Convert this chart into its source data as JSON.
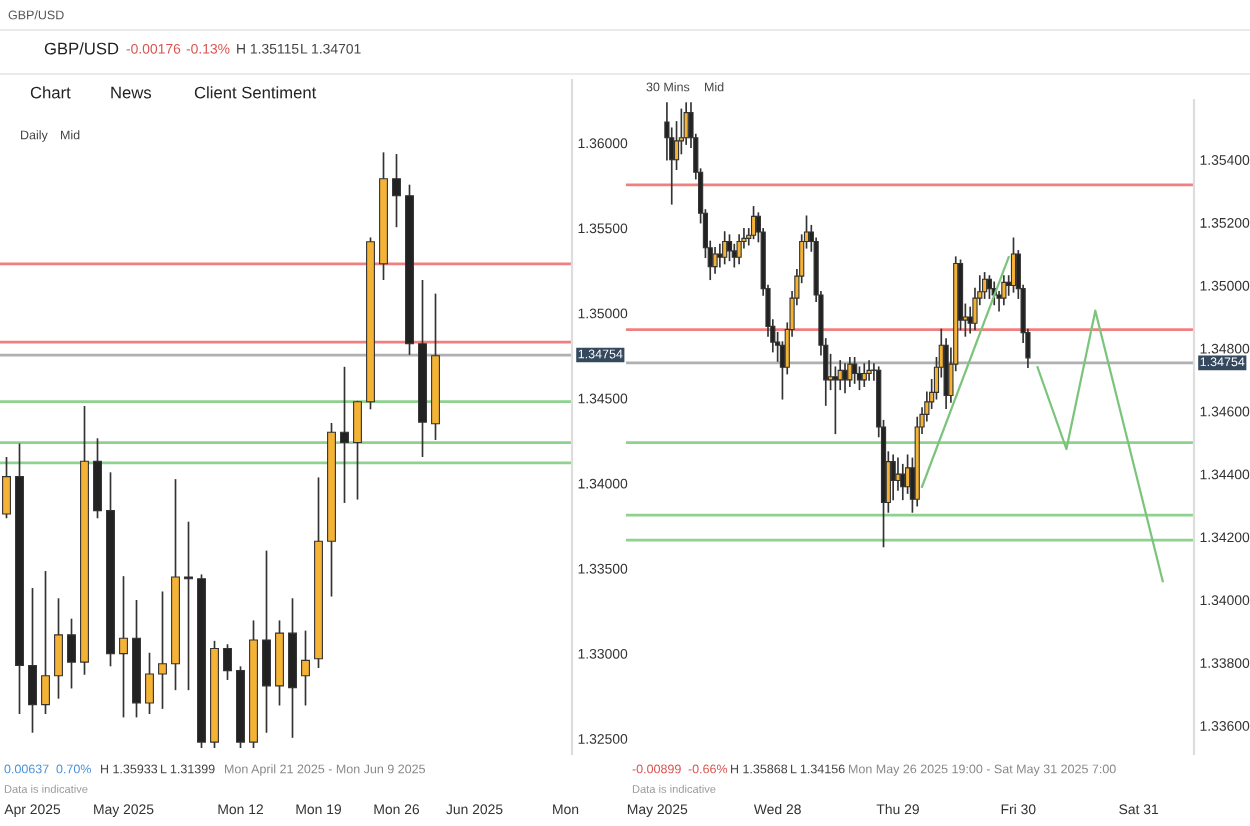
{
  "chart_data": [
    {
      "type": "candlestick",
      "annotations": [
        "GBP/USD",
        "GBP/USD",
        "-0.00176",
        "-0.13%",
        "H 1.35115",
        "L 1.34701",
        "Chart",
        "News",
        "Client Sentiment",
        "Daily",
        "Mid",
        "0.00637",
        "0.70%",
        "H 1.35933",
        "L 1.31399",
        "Mon April 21 2025 - Mon Jun 9 2025",
        "Data is indicative"
      ],
      "categories": [
        null,
        null,
        "Apr 2025",
        null,
        null,
        null,
        null,
        null,
        null,
        "May 2025",
        null,
        null,
        null,
        null,
        null,
        null,
        null,
        null,
        "Mon 12",
        null,
        null,
        null,
        null,
        null,
        "Mon 19",
        null,
        null,
        null,
        null,
        null,
        "Mon 26",
        null,
        null,
        null,
        null,
        null,
        "Jun 2025",
        null,
        null,
        null,
        null,
        null,
        null,
        "Mon"
      ],
      "ohlc": [
        [
          1.3382,
          1.3415,
          1.338,
          1.3404
        ],
        [
          1.3404,
          1.3423,
          1.3265,
          1.3293
        ],
        [
          1.3293,
          1.3338,
          1.3254,
          1.327
        ],
        [
          1.327,
          1.3348,
          1.3265,
          1.3287
        ],
        [
          1.3287,
          1.3332,
          1.3274,
          1.3311
        ],
        [
          1.3311,
          1.332,
          1.328,
          1.3295
        ],
        [
          1.3295,
          1.3445,
          1.3288,
          1.3413
        ],
        [
          1.3413,
          1.3426,
          1.338,
          1.3384
        ],
        [
          1.3384,
          1.3406,
          1.3293,
          1.33
        ],
        [
          1.33,
          1.3345,
          1.3263,
          1.3309
        ],
        [
          1.3309,
          1.3331,
          1.3263,
          1.3271
        ],
        [
          1.3271,
          1.33,
          1.3265,
          1.3288
        ],
        [
          1.3288,
          1.3336,
          1.3268,
          1.3294
        ],
        [
          1.3294,
          1.3402,
          1.3279,
          1.3345
        ],
        [
          1.3345,
          1.3377,
          1.3279,
          1.3344
        ],
        [
          1.3344,
          1.3346,
          1.3245,
          1.3248
        ],
        [
          1.3248,
          1.3307,
          1.3245,
          1.3303
        ],
        [
          1.3303,
          1.3305,
          1.3285,
          1.329
        ],
        [
          1.329,
          1.3292,
          1.3245,
          1.3248
        ],
        [
          1.3248,
          1.3319,
          1.3245,
          1.3308
        ],
        [
          1.3308,
          1.336,
          1.3254,
          1.3281
        ],
        [
          1.3281,
          1.3319,
          1.327,
          1.3312
        ],
        [
          1.3312,
          1.3332,
          1.3251,
          1.328
        ],
        [
          1.3287,
          1.3313,
          1.327,
          1.3296
        ],
        [
          1.3297,
          1.3403,
          1.3292,
          1.3366
        ],
        [
          1.3366,
          1.3435,
          1.3334,
          1.343
        ],
        [
          1.343,
          1.3468,
          1.3389,
          1.3424
        ],
        [
          1.3424,
          1.3448,
          1.3391,
          1.3448
        ],
        [
          1.3448,
          1.3544,
          1.3444,
          1.3542
        ],
        [
          1.3529,
          1.3594,
          1.352,
          1.3579
        ],
        [
          1.3579,
          1.3593,
          1.3551,
          1.3569
        ],
        [
          1.3569,
          1.3575,
          1.3476,
          1.3482
        ],
        [
          1.3482,
          1.3519,
          1.3416,
          1.3436
        ],
        [
          1.3435,
          1.3511,
          1.3426,
          1.3475
        ],
        null,
        null,
        null,
        null,
        null,
        null,
        null,
        null,
        null,
        null
      ],
      "ylim": [
        1.3241,
        1.3637
      ],
      "yticks": [
        {
          "value": 1.325,
          "label": "1.32500"
        },
        {
          "value": 1.33,
          "label": "1.33000"
        },
        {
          "value": 1.335,
          "label": "1.33500"
        },
        {
          "value": 1.34,
          "label": "1.34000"
        },
        {
          "value": 1.345,
          "label": "1.34500"
        },
        {
          "value": 1.35,
          "label": "1.35000"
        },
        {
          "value": 1.355,
          "label": "1.35500"
        },
        {
          "value": 1.36,
          "label": "1.36000"
        }
      ],
      "ref_lines": [
        {
          "axis": "y",
          "value": 1.3529,
          "color": "#f08080"
        },
        {
          "axis": "y",
          "value": 1.3483,
          "color": "#f08080"
        },
        {
          "axis": "y",
          "value": 1.34754,
          "label": "1.34754",
          "color": "#b0b0b0"
        },
        {
          "axis": "y",
          "value": 1.3448,
          "color": "#8fd18f"
        },
        {
          "axis": "y",
          "value": 1.3424,
          "color": "#8fd18f"
        },
        {
          "axis": "y",
          "value": 1.3412,
          "color": "#8fd18f"
        }
      ]
    },
    {
      "type": "candlestick",
      "annotations": [
        "30 Mins",
        "Mid",
        "-0.00899",
        "-0.66%",
        "H 1.35868",
        "L 1.34156",
        "Mon May 26 2025 19:00 - Sat May 31 2025 7:00",
        "Data is indicative"
      ],
      "categories": [
        null,
        null,
        null,
        null,
        null,
        null,
        "May 2025",
        null,
        null,
        null,
        null,
        null,
        null,
        null,
        null,
        null,
        null,
        null,
        null,
        null,
        null,
        null,
        null,
        null,
        null,
        null,
        null,
        null,
        null,
        null,
        null,
        "Wed 28",
        null,
        null,
        null,
        null,
        null,
        null,
        null,
        null,
        null,
        null,
        null,
        null,
        null,
        null,
        null,
        null,
        null,
        null,
        null,
        null,
        null,
        null,
        null,
        null,
        "Thu 29",
        null,
        null,
        null,
        null,
        null,
        null,
        null,
        null,
        null,
        null,
        null,
        null,
        null,
        null,
        null,
        null,
        null,
        null,
        null,
        null,
        null,
        null,
        null,
        null,
        "Fri 30",
        null,
        null,
        null,
        null,
        null,
        null,
        null,
        null,
        null,
        null,
        null,
        null,
        null,
        null,
        null,
        null,
        null,
        null,
        null,
        null,
        null,
        null,
        null,
        null,
        "Sat 31",
        null,
        null,
        null,
        null,
        null,
        null,
        null,
        null,
        null,
        null,
        null
      ],
      "ohlc": [
        null,
        null,
        null,
        null,
        null,
        null,
        null,
        null,
        [
          1.3552,
          1.3558,
          1.354,
          1.3547
        ],
        [
          1.3547,
          1.355,
          1.3526,
          1.354
        ],
        [
          1.354,
          1.3552,
          1.3537,
          1.3546
        ],
        [
          1.3546,
          1.3556,
          1.3542,
          1.3547
        ],
        [
          1.3547,
          1.3558,
          1.3545,
          1.3555
        ],
        [
          1.3555,
          1.3558,
          1.3544,
          1.3547
        ],
        [
          1.3547,
          1.3548,
          1.3534,
          1.3536
        ],
        [
          1.3536,
          1.3537,
          1.352,
          1.3523
        ],
        [
          1.3523,
          1.3524,
          1.3509,
          1.3512
        ],
        [
          1.3512,
          1.3514,
          1.3502,
          1.3506
        ],
        [
          1.3506,
          1.3512,
          1.3504,
          1.351
        ],
        [
          1.351,
          1.3513,
          1.3506,
          1.3509
        ],
        [
          1.3509,
          1.3517,
          1.3507,
          1.3514
        ],
        [
          1.3514,
          1.3516,
          1.3508,
          1.3511
        ],
        [
          1.3511,
          1.3513,
          1.3506,
          1.3509
        ],
        [
          1.3509,
          1.3516,
          1.3507,
          1.3514
        ],
        [
          1.3514,
          1.3518,
          1.3512,
          1.3515
        ],
        [
          1.3515,
          1.3518,
          1.3513,
          1.3516
        ],
        [
          1.3516,
          1.3525,
          1.3515,
          1.3522
        ],
        [
          1.3522,
          1.3523,
          1.3514,
          1.3517
        ],
        [
          1.3517,
          1.3518,
          1.3497,
          1.3499
        ],
        [
          1.3499,
          1.35,
          1.3484,
          1.3487
        ],
        [
          1.3487,
          1.3489,
          1.3479,
          1.3482
        ],
        [
          1.3482,
          1.3485,
          1.3476,
          1.3481
        ],
        [
          1.3481,
          1.3482,
          1.3464,
          1.3474
        ],
        [
          1.3474,
          1.3488,
          1.3472,
          1.3486
        ],
        [
          1.3486,
          1.3498,
          1.3484,
          1.3496
        ],
        [
          1.3496,
          1.3505,
          1.3494,
          1.3503
        ],
        [
          1.3503,
          1.3516,
          1.3501,
          1.3514
        ],
        [
          1.3514,
          1.3522,
          1.3512,
          1.3517
        ],
        [
          1.3517,
          1.3519,
          1.3511,
          1.3514
        ],
        [
          1.3514,
          1.3515,
          1.3495,
          1.3497
        ],
        [
          1.3497,
          1.3498,
          1.3478,
          1.3481
        ],
        [
          1.3481,
          1.3483,
          1.3462,
          1.347
        ],
        [
          1.347,
          1.3478,
          1.3467,
          1.3471
        ],
        [
          1.3471,
          1.3474,
          1.3453,
          1.347
        ],
        [
          1.347,
          1.3476,
          1.3467,
          1.3473
        ],
        [
          1.3473,
          1.3475,
          1.3466,
          1.347
        ],
        [
          1.347,
          1.3477,
          1.3468,
          1.3475
        ],
        [
          1.3475,
          1.3477,
          1.3469,
          1.3472
        ],
        [
          1.3472,
          1.3474,
          1.3467,
          1.347
        ],
        [
          1.347,
          1.3475,
          1.3468,
          1.3472
        ],
        [
          1.3472,
          1.3476,
          1.347,
          1.3473
        ],
        [
          1.3473,
          1.3475,
          1.347,
          1.3473
        ],
        [
          1.3473,
          1.3474,
          1.3452,
          1.3455
        ],
        [
          1.3455,
          1.3457,
          1.3417,
          1.3431
        ],
        [
          1.3431,
          1.3447,
          1.3428,
          1.3444
        ],
        [
          1.3444,
          1.3446,
          1.3432,
          1.3438
        ],
        [
          1.3438,
          1.3445,
          1.3435,
          1.344
        ],
        [
          1.344,
          1.3443,
          1.3432,
          1.3436
        ],
        [
          1.3436,
          1.3446,
          1.3434,
          1.3442
        ],
        [
          1.3442,
          1.3445,
          1.3428,
          1.3432
        ],
        [
          1.3432,
          1.3458,
          1.343,
          1.3455
        ],
        [
          1.3455,
          1.3461,
          1.3453,
          1.3459
        ],
        [
          1.3459,
          1.3466,
          1.3457,
          1.3463
        ],
        [
          1.3463,
          1.347,
          1.3461,
          1.3466
        ],
        [
          1.3466,
          1.3477,
          1.3464,
          1.3474
        ],
        [
          1.3474,
          1.3486,
          1.3471,
          1.3481
        ],
        [
          1.3481,
          1.3483,
          1.3461,
          1.3465
        ],
        [
          1.3465,
          1.348,
          1.3463,
          1.3475
        ],
        [
          1.3475,
          1.3509,
          1.3473,
          1.3507
        ],
        [
          1.3507,
          1.3508,
          1.3486,
          1.3489
        ],
        [
          1.3489,
          1.3494,
          1.3484,
          1.349
        ],
        [
          1.349,
          1.3493,
          1.3485,
          1.3488
        ],
        [
          1.3488,
          1.3499,
          1.3486,
          1.3496
        ],
        [
          1.3496,
          1.3503,
          1.3494,
          1.3498
        ],
        [
          1.3498,
          1.3504,
          1.3496,
          1.3502
        ],
        [
          1.3502,
          1.3503,
          1.3496,
          1.3499
        ],
        [
          1.3499,
          1.3501,
          1.3494,
          1.3497
        ],
        [
          1.3497,
          1.3498,
          1.3492,
          1.3496
        ],
        [
          1.3496,
          1.3503,
          1.3494,
          1.3501
        ],
        [
          1.3501,
          1.3503,
          1.3497,
          1.35
        ],
        [
          1.35,
          1.3515,
          1.3498,
          1.351
        ],
        [
          1.351,
          1.3511,
          1.3496,
          1.3499
        ],
        [
          1.3499,
          1.35,
          1.3482,
          1.3485
        ],
        [
          1.3485,
          1.3486,
          1.3474,
          1.3477
        ],
        null,
        null,
        null,
        null,
        null,
        null,
        null,
        null,
        null,
        null,
        null,
        null,
        null,
        null,
        null,
        null,
        null,
        null,
        null,
        null,
        null,
        null,
        null,
        null,
        null,
        null,
        null,
        null,
        null,
        null,
        null,
        null,
        null,
        null
      ],
      "series": [
        {
          "type": "line",
          "color": "#7cc47c",
          "values": [
            null,
            null,
            null,
            null,
            null,
            null,
            null,
            null,
            null,
            null,
            null,
            null,
            null,
            null,
            null,
            null,
            null,
            null,
            null,
            null,
            null,
            null,
            null,
            null,
            null,
            null,
            null,
            null,
            null,
            null,
            null,
            null,
            null,
            null,
            null,
            null,
            null,
            null,
            null,
            null,
            null,
            null,
            null,
            null,
            null,
            null,
            null,
            null,
            null,
            null,
            null,
            null,
            null,
            null,
            null,
            null,
            null,
            null,
            null,
            null,
            null,
            1.3436,
            null,
            null,
            null,
            null,
            null,
            null,
            null,
            null,
            null,
            null,
            null,
            null,
            null,
            null,
            null,
            null,
            null,
            1.3509,
            null,
            null,
            null,
            null,
            null,
            null,
            null,
            null,
            null,
            null,
            null,
            null,
            null,
            null,
            null,
            null,
            null,
            null,
            null,
            null,
            null,
            null,
            null,
            null,
            null,
            null,
            null,
            null,
            null,
            null,
            null,
            null,
            null,
            null,
            null,
            null,
            null,
            null
          ]
        },
        {
          "type": "line",
          "color": "#7cc47c",
          "values": [
            null,
            null,
            null,
            null,
            null,
            null,
            null,
            null,
            null,
            null,
            null,
            null,
            null,
            null,
            null,
            null,
            null,
            null,
            null,
            null,
            null,
            null,
            null,
            null,
            null,
            null,
            null,
            null,
            null,
            null,
            null,
            null,
            null,
            null,
            null,
            null,
            null,
            null,
            null,
            null,
            null,
            null,
            null,
            null,
            null,
            null,
            null,
            null,
            null,
            null,
            null,
            null,
            null,
            null,
            null,
            null,
            null,
            null,
            null,
            null,
            null,
            null,
            null,
            null,
            null,
            null,
            null,
            null,
            null,
            null,
            null,
            null,
            null,
            null,
            null,
            null,
            null,
            null,
            null,
            null,
            null,
            null,
            null,
            null,
            null,
            1.3474,
            null,
            null,
            null,
            null,
            null,
            1.3448,
            null,
            null,
            null,
            null,
            null,
            1.3492,
            null,
            null,
            null,
            null,
            null,
            null,
            null,
            null,
            null,
            null,
            null,
            null,
            null,
            1.3406,
            null,
            null,
            null,
            null,
            null,
            null
          ]
        }
      ],
      "ylim": [
        1.3351,
        1.3559
      ],
      "yticks": [
        {
          "value": 1.336,
          "label": "1.33600"
        },
        {
          "value": 1.338,
          "label": "1.33800"
        },
        {
          "value": 1.34,
          "label": "1.34000"
        },
        {
          "value": 1.342,
          "label": "1.34200"
        },
        {
          "value": 1.344,
          "label": "1.34400"
        },
        {
          "value": 1.346,
          "label": "1.34600"
        },
        {
          "value": 1.348,
          "label": "1.34800"
        },
        {
          "value": 1.35,
          "label": "1.35000"
        },
        {
          "value": 1.352,
          "label": "1.35200"
        },
        {
          "value": 1.354,
          "label": "1.35400"
        }
      ],
      "ref_lines": [
        {
          "axis": "y",
          "value": 1.3532,
          "color": "#f08080"
        },
        {
          "axis": "y",
          "value": 1.3486,
          "color": "#f08080"
        },
        {
          "axis": "y",
          "value": 1.34754,
          "label": "1.34754",
          "color": "#b0b0b0"
        },
        {
          "axis": "y",
          "value": 1.345,
          "color": "#8fd18f"
        },
        {
          "axis": "y",
          "value": 1.3427,
          "color": "#8fd18f"
        },
        {
          "axis": "y",
          "value": 1.3419,
          "color": "#8fd18f"
        }
      ]
    }
  ]
}
